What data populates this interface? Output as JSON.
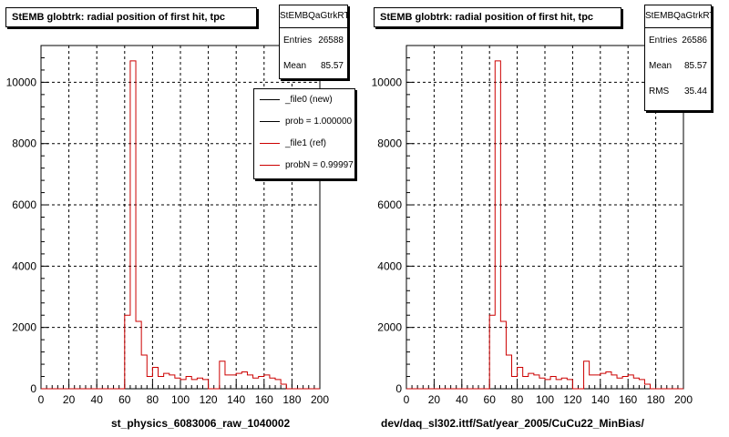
{
  "chart_data": [
    {
      "type": "bar",
      "title": "StEMB globtrk: radial position of first hit, tpc",
      "xlabel": "st_physics_6083006_raw_1040002",
      "ylabel": "",
      "xlim": [
        0,
        200
      ],
      "ylim": [
        0,
        11200
      ],
      "xticks": [
        "0",
        "20",
        "40",
        "60",
        "80",
        "100",
        "120",
        "140",
        "160",
        "180",
        "200"
      ],
      "yticks": [
        "0",
        "2000",
        "4000",
        "6000",
        "8000",
        "10000"
      ],
      "grid": true,
      "stats": {
        "name": "StEMBQaGtrkRT",
        "entries_label": "Entries",
        "entries": "26588",
        "mean_label": "Mean",
        "mean": "85.57"
      },
      "legend": {
        "placement": "top-right",
        "entries": [
          "_file0 (new)",
          "prob = 1.000000",
          "_file1 (ref)",
          "probN = 0.99997"
        ]
      },
      "series": [
        {
          "color": "#cc0000",
          "bin_width": 4,
          "x": [
            0,
            4,
            8,
            12,
            16,
            20,
            24,
            28,
            32,
            36,
            40,
            44,
            48,
            52,
            56,
            60,
            64,
            68,
            72,
            76,
            80,
            84,
            88,
            92,
            96,
            100,
            104,
            108,
            112,
            116,
            120,
            124,
            128,
            132,
            136,
            140,
            144,
            148,
            152,
            156,
            160,
            164,
            168,
            172,
            176,
            180,
            184,
            188,
            192,
            196
          ],
          "values": [
            0,
            0,
            0,
            0,
            0,
            0,
            0,
            0,
            0,
            0,
            0,
            0,
            0,
            0,
            0,
            2400,
            10700,
            2200,
            1100,
            400,
            700,
            400,
            500,
            450,
            350,
            300,
            400,
            300,
            350,
            300,
            0,
            0,
            900,
            450,
            450,
            500,
            550,
            450,
            350,
            400,
            450,
            350,
            300,
            150,
            0,
            0,
            0,
            0,
            0,
            0
          ]
        }
      ]
    },
    {
      "type": "bar",
      "title": "StEMB globtrk: radial position of first hit, tpc",
      "xlabel": "dev/daq_sl302.ittf/Sat/year_2005/CuCu22_MinBias/",
      "ylabel": "",
      "xlim": [
        0,
        200
      ],
      "ylim": [
        0,
        11200
      ],
      "xticks": [
        "0",
        "20",
        "40",
        "60",
        "80",
        "100",
        "120",
        "140",
        "160",
        "180",
        "200"
      ],
      "yticks": [
        "0",
        "2000",
        "4000",
        "6000",
        "8000",
        "10000"
      ],
      "grid": true,
      "stats": {
        "name": "StEMBQaGtrkRT",
        "entries_label": "Entries",
        "entries": "26586",
        "mean_label": "Mean",
        "mean": "85.57",
        "rms_label": "RMS",
        "rms": "35.44"
      },
      "series": [
        {
          "color": "#cc0000",
          "bin_width": 4,
          "x": [
            0,
            4,
            8,
            12,
            16,
            20,
            24,
            28,
            32,
            36,
            40,
            44,
            48,
            52,
            56,
            60,
            64,
            68,
            72,
            76,
            80,
            84,
            88,
            92,
            96,
            100,
            104,
            108,
            112,
            116,
            120,
            124,
            128,
            132,
            136,
            140,
            144,
            148,
            152,
            156,
            160,
            164,
            168,
            172,
            176,
            180,
            184,
            188,
            192,
            196
          ],
          "values": [
            0,
            0,
            0,
            0,
            0,
            0,
            0,
            0,
            0,
            0,
            0,
            0,
            0,
            0,
            0,
            2400,
            10700,
            2200,
            1100,
            400,
            700,
            400,
            500,
            450,
            350,
            300,
            400,
            300,
            350,
            300,
            0,
            0,
            900,
            450,
            450,
            500,
            550,
            450,
            350,
            400,
            450,
            350,
            300,
            150,
            0,
            0,
            0,
            0,
            0,
            0
          ]
        }
      ]
    }
  ]
}
